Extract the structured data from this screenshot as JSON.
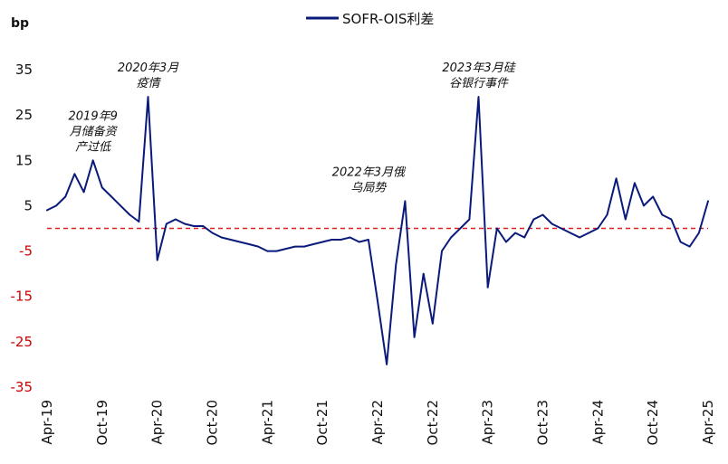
{
  "chart_data": {
    "type": "line",
    "title": "",
    "unit_label": "bp",
    "ylabel": "bp",
    "xlabel": "",
    "ylim": [
      -35,
      35
    ],
    "y_ticks": [
      35,
      25,
      15,
      5,
      -5,
      -15,
      -25,
      -35
    ],
    "x_ticks": [
      "Apr-19",
      "Oct-19",
      "Apr-20",
      "Oct-20",
      "Apr-21",
      "Oct-21",
      "Apr-22",
      "Oct-22",
      "Apr-23",
      "Oct-23",
      "Apr-24",
      "Oct-24",
      "Apr-25"
    ],
    "legend_position": "top",
    "grid": false,
    "reference_line": {
      "y": 0,
      "style": "dashed",
      "color": "#e02020"
    },
    "colors": {
      "series": "#0a1a7a",
      "negative_ticks": "#cc0000",
      "reference": "#e02020"
    },
    "series": [
      {
        "name": "SOFR-OIS利差",
        "x": [
          "2019-04",
          "2019-05",
          "2019-06",
          "2019-07",
          "2019-08",
          "2019-09",
          "2019-10",
          "2019-11",
          "2019-12",
          "2020-01",
          "2020-02",
          "2020-03",
          "2020-04",
          "2020-05",
          "2020-06",
          "2020-07",
          "2020-08",
          "2020-09",
          "2020-10",
          "2020-11",
          "2020-12",
          "2021-01",
          "2021-02",
          "2021-03",
          "2021-04",
          "2021-05",
          "2021-06",
          "2021-07",
          "2021-08",
          "2021-09",
          "2021-10",
          "2021-11",
          "2021-12",
          "2022-01",
          "2022-02",
          "2022-03",
          "2022-04",
          "2022-05",
          "2022-06",
          "2022-07",
          "2022-08",
          "2022-09",
          "2022-10",
          "2022-11",
          "2022-12",
          "2023-01",
          "2023-02",
          "2023-03",
          "2023-04",
          "2023-05",
          "2023-06",
          "2023-07",
          "2023-08",
          "2023-09",
          "2023-10",
          "2023-11",
          "2023-12",
          "2024-01",
          "2024-02",
          "2024-03",
          "2024-04",
          "2024-05",
          "2024-06",
          "2024-07",
          "2024-08",
          "2024-09",
          "2024-10",
          "2024-11",
          "2024-12",
          "2025-01",
          "2025-02",
          "2025-03",
          "2025-04"
        ],
        "values": [
          4,
          5,
          7,
          12,
          8,
          15,
          9,
          7,
          5,
          3,
          1.5,
          29,
          -7,
          1,
          2,
          1,
          0.5,
          0.5,
          -1,
          -2,
          -2.5,
          -3,
          -3.5,
          -4,
          -5,
          -5,
          -4.5,
          -4,
          -4,
          -3.5,
          -3,
          -2.5,
          -2.5,
          -2,
          -3,
          -2.5,
          -16,
          -30,
          -8,
          6,
          -24,
          -10,
          -21,
          -5,
          -2,
          0,
          2,
          29,
          -13,
          0,
          -3,
          -1,
          -2,
          2,
          3,
          1,
          0,
          -1,
          -2,
          -1,
          0,
          3,
          11,
          2,
          10,
          5,
          7,
          3,
          2,
          -3,
          -4,
          -1,
          6
        ]
      }
    ],
    "annotations": [
      {
        "x": "2019-09",
        "y": 15,
        "lines": [
          "2019年9",
          "月储备资",
          "产过低"
        ]
      },
      {
        "x": "2020-03",
        "y": 29,
        "lines": [
          "2020年3月",
          "疫情"
        ]
      },
      {
        "x": "2022-03",
        "y": 6,
        "lines": [
          "2022年3月俄",
          "乌局势"
        ]
      },
      {
        "x": "2023-03",
        "y": 29,
        "lines": [
          "2023年3月硅",
          "谷银行事件"
        ]
      }
    ]
  }
}
